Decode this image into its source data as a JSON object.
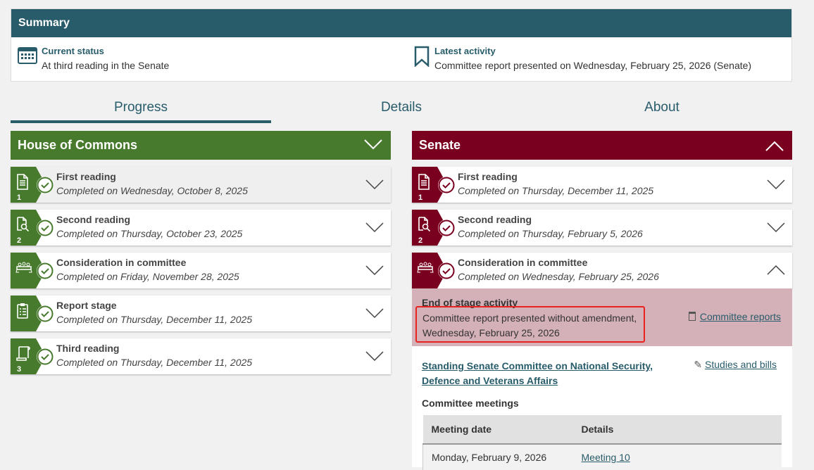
{
  "summary": {
    "title": "Summary",
    "current_status": {
      "label": "Current status",
      "value": "At third reading in the Senate",
      "icon": "calendar-icon"
    },
    "latest_activity": {
      "label": "Latest activity",
      "value": "Committee report presented on Wednesday, February 25, 2026 (Senate)",
      "icon": "bookmark-icon"
    }
  },
  "tabs": [
    {
      "label": "Progress",
      "active": true
    },
    {
      "label": "Details"
    },
    {
      "label": "About"
    }
  ],
  "colors": {
    "teal": "#285c6a",
    "commons": "#477a2c",
    "senate": "#7a0020",
    "highlight": "#d4b0b8"
  },
  "commons": {
    "title": "House of Commons",
    "stages": [
      {
        "title": "First reading",
        "date": "Completed on Wednesday, October 8, 2025",
        "num": "1"
      },
      {
        "title": "Second reading",
        "date": "Completed on Thursday, October 23, 2025",
        "num": "2"
      },
      {
        "title": "Consideration in committee",
        "date": "Completed on Friday, November 28, 2025",
        "num": ""
      },
      {
        "title": "Report stage",
        "date": "Completed on Thursday, December 11, 2025",
        "num": ""
      },
      {
        "title": "Third reading",
        "date": "Completed on Thursday, December 11, 2025",
        "num": "3"
      }
    ]
  },
  "senate": {
    "title": "Senate",
    "stages": [
      {
        "title": "First reading",
        "date": "Completed on Thursday, December 11, 2025",
        "num": "1"
      },
      {
        "title": "Second reading",
        "date": "Completed on Thursday, February 5, 2026",
        "num": "2"
      },
      {
        "title": "Consideration in committee",
        "date": "Completed on Wednesday, February 25, 2026",
        "num": ""
      }
    ],
    "end_of_stage": {
      "heading": "End of stage activity",
      "line1": "Committee report presented without amendment,",
      "line2": "Wednesday, February 25, 2026",
      "reports_link": "Committee reports"
    },
    "committee": "Standing Senate Committee on National Security, Defence and Veterans Affairs",
    "studies_link": "Studies and bills",
    "meetings_heading": "Committee meetings",
    "table": {
      "headers": [
        "Meeting date",
        "Details"
      ],
      "rows": [
        [
          "Monday, February 9, 2026",
          "Meeting 10"
        ]
      ]
    }
  }
}
